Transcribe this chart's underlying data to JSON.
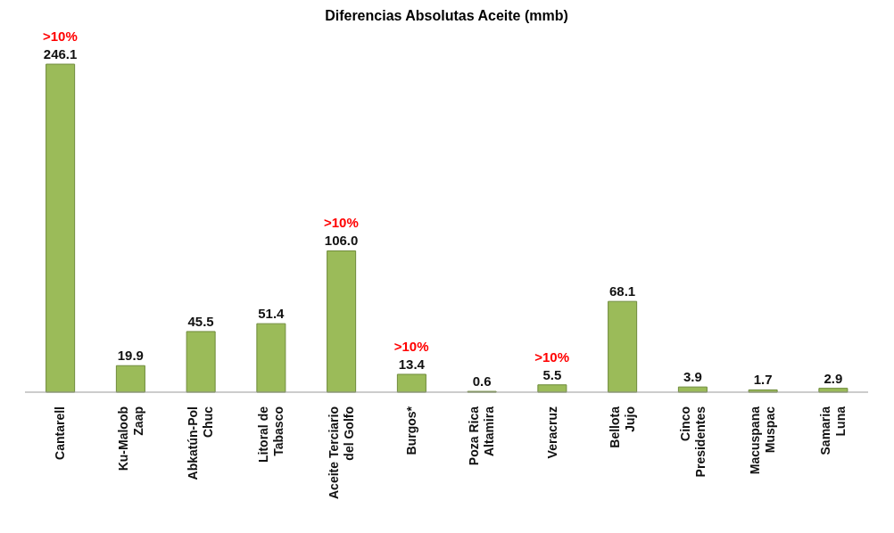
{
  "chart_data": {
    "type": "bar",
    "title": "Diferencias Absolutas Aceite (mmb)",
    "categories": [
      "Cantarell",
      "Ku-Maloob\nZaap",
      "Abkatún-Pol\nChuc",
      "Litoral de\nTabasco",
      "Aceite Terciario\ndel Golfo",
      "Burgos*",
      "Poza Rica\nAltamira",
      "Veracruz",
      "Bellota\nJujo",
      "Cinco\nPresidentes",
      "Macuspana\nMuspac",
      "Samaria\nLuna"
    ],
    "values": [
      246.1,
      19.9,
      45.5,
      51.4,
      106.0,
      13.4,
      0.6,
      5.5,
      68.1,
      3.9,
      1.7,
      2.9
    ],
    "value_labels": [
      "246.1",
      "19.9",
      "45.5",
      "51.4",
      "106.0",
      "13.4",
      "0.6",
      "5.5",
      "68.1",
      "3.9",
      "1.7",
      "2.9"
    ],
    "color": "#9bbb59",
    "annotations": [
      {
        "text": ">10%",
        "x": "Cantarell",
        "y": 246.1
      },
      {
        "text": ">10%",
        "x": "Aceite Terciario\ndel Golfo",
        "y": 106.0
      },
      {
        "text": ">10%",
        "x": "Burgos*",
        "y": 13.4
      },
      {
        "text": ">10%",
        "x": "Veracruz",
        "y": 5.5
      }
    ],
    "grid": false,
    "legend": false
  }
}
